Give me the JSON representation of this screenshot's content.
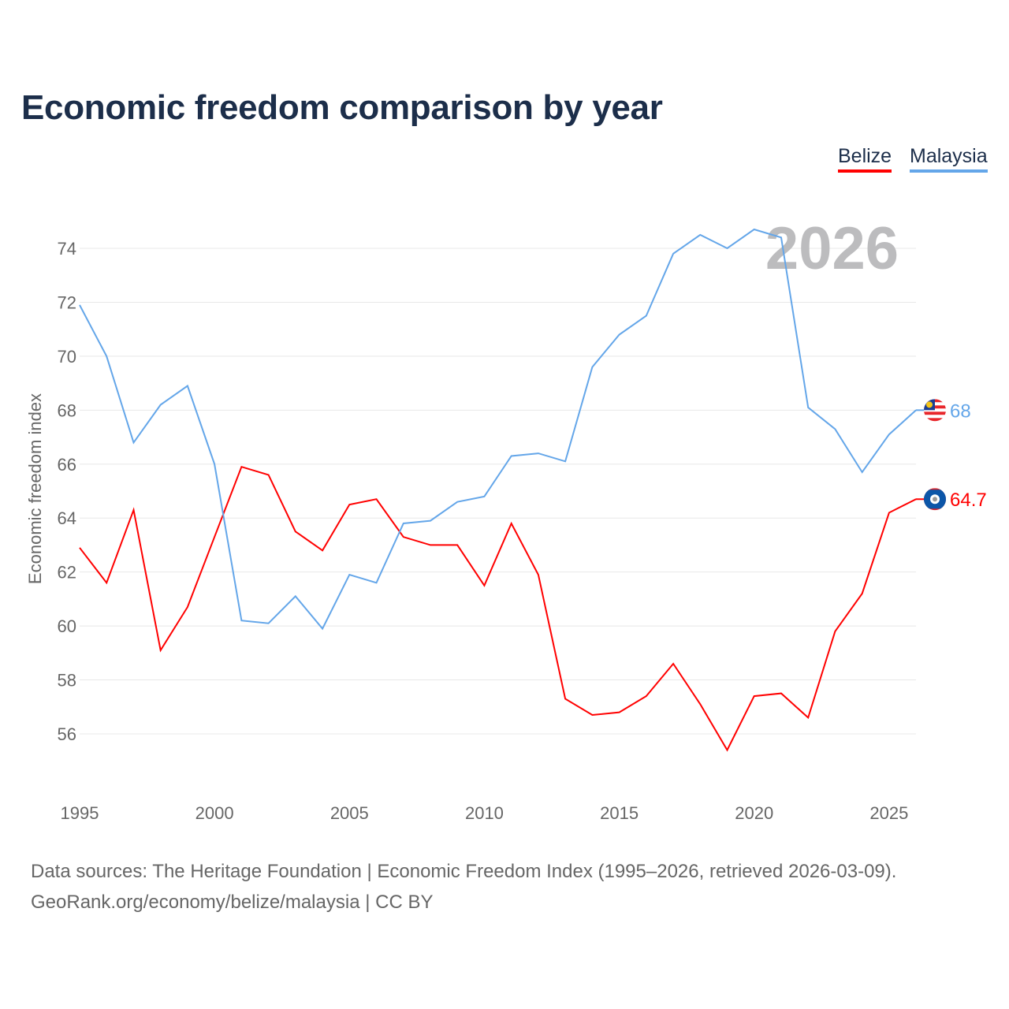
{
  "chart_data": {
    "type": "line",
    "title": "Economic freedom comparison by year",
    "xlabel": "",
    "ylabel": "Economic freedom index",
    "year_watermark": "2026",
    "x": [
      1995,
      1996,
      1997,
      1998,
      1999,
      2000,
      2001,
      2002,
      2003,
      2004,
      2005,
      2006,
      2007,
      2008,
      2009,
      2010,
      2011,
      2012,
      2013,
      2014,
      2015,
      2016,
      2017,
      2018,
      2019,
      2020,
      2021,
      2022,
      2023,
      2024,
      2025,
      2026
    ],
    "xticks": [
      "1995",
      "2000",
      "2005",
      "2010",
      "2015",
      "2020",
      "2025"
    ],
    "yticks": [
      "56",
      "58",
      "60",
      "62",
      "64",
      "66",
      "68",
      "70",
      "72",
      "74"
    ],
    "xlim": [
      1995,
      2026
    ],
    "ylim": [
      54,
      76
    ],
    "grid": true,
    "legend_position": "top-right",
    "series": [
      {
        "name": "Belize",
        "color": "#ff0000",
        "end_label": "64.7",
        "values": [
          62.9,
          61.6,
          64.3,
          59.1,
          60.7,
          63.3,
          65.9,
          65.6,
          63.5,
          62.8,
          64.5,
          64.7,
          63.3,
          63.0,
          63.0,
          61.5,
          63.8,
          61.9,
          57.3,
          56.7,
          56.8,
          57.4,
          58.6,
          57.1,
          55.4,
          57.4,
          57.5,
          56.6,
          59.8,
          61.2,
          64.2,
          64.7
        ]
      },
      {
        "name": "Malaysia",
        "color": "#64a6e9",
        "end_label": "68",
        "values": [
          71.9,
          70.0,
          66.8,
          68.2,
          68.9,
          66.0,
          60.2,
          60.1,
          61.1,
          59.9,
          61.9,
          61.6,
          63.8,
          63.9,
          64.6,
          64.8,
          66.3,
          66.4,
          66.1,
          69.6,
          70.8,
          71.5,
          73.8,
          74.5,
          74.0,
          74.7,
          74.4,
          68.1,
          67.3,
          65.7,
          67.1,
          68.0
        ]
      }
    ]
  },
  "legend": {
    "belize": "Belize",
    "malaysia": "Malaysia"
  },
  "source": {
    "line1": "Data sources: The Heritage Foundation | Economic Freedom Index (1995–2026, retrieved 2026-03-09).",
    "line2": "GeoRank.org/economy/belize/malaysia | CC BY"
  }
}
